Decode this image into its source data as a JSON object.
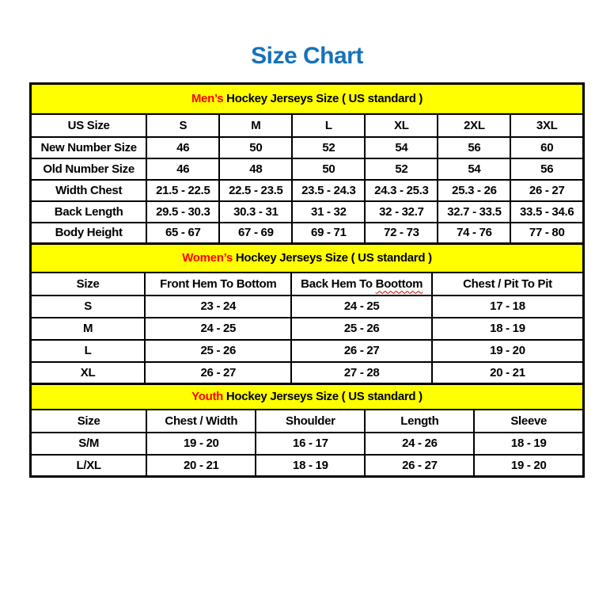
{
  "page": {
    "title": "Size Chart"
  },
  "colors": {
    "title_blue": "#1572BD",
    "band_yellow": "#FFFF00",
    "accent_red": "#FF0000",
    "spellcheck_squiggle_red": "#D40000",
    "border_black": "#000000"
  },
  "sections": [
    {
      "id": "mens",
      "heading_accent": "Men’s",
      "heading_rest": "Hockey Jerseys Size ( US standard )",
      "columns": [
        {
          "text": "US Size"
        },
        {
          "text": "S"
        },
        {
          "text": "M"
        },
        {
          "text": "L"
        },
        {
          "text": "XL"
        },
        {
          "text": "2XL"
        },
        {
          "text": "3XL"
        }
      ],
      "rows": [
        {
          "label": "New Number Size",
          "values": [
            "46",
            "50",
            "52",
            "54",
            "56",
            "60"
          ]
        },
        {
          "label": "Old Number Size",
          "values": [
            "46",
            "48",
            "50",
            "52",
            "54",
            "56"
          ]
        },
        {
          "label": "Width Chest",
          "values": [
            "21.5 - 22.5",
            "22.5 - 23.5",
            "23.5 - 24.3",
            "24.3 - 25.3",
            "25.3 - 26",
            "26 - 27"
          ]
        },
        {
          "label": "Back Length",
          "values": [
            "29.5 - 30.3",
            "30.3 - 31",
            "31 - 32",
            "32 - 32.7",
            "32.7 - 33.5",
            "33.5 - 34.6"
          ]
        },
        {
          "label": "Body Height",
          "values": [
            "65 - 67",
            "67 - 69",
            "69 - 71",
            "72 - 73",
            "74 - 76",
            "77 - 80"
          ]
        }
      ]
    },
    {
      "id": "womens",
      "heading_accent": "Women’s",
      "heading_rest": "Hockey Jerseys Size ( US standard )",
      "columns": [
        {
          "text": "Size"
        },
        {
          "text": "Front Hem To Bottom"
        },
        {
          "text": "Back Hem To Boottom",
          "wavy_word": "Boottom"
        },
        {
          "text": "Chest / Pit To Pit"
        }
      ],
      "rows": [
        {
          "label": "S",
          "values": [
            "23 - 24",
            "24 - 25",
            "17 - 18"
          ]
        },
        {
          "label": "M",
          "values": [
            "24 - 25",
            "25 - 26",
            "18 - 19"
          ]
        },
        {
          "label": "L",
          "values": [
            "25 - 26",
            "26 - 27",
            "19 - 20"
          ]
        },
        {
          "label": "XL",
          "values": [
            "26 - 27",
            "27 - 28",
            "20 - 21"
          ]
        }
      ]
    },
    {
      "id": "youth",
      "heading_accent": "Youth",
      "heading_rest": "Hockey Jerseys Size ( US standard )",
      "columns": [
        {
          "text": "Size"
        },
        {
          "text": "Chest / Width"
        },
        {
          "text": "Shoulder"
        },
        {
          "text": "Length"
        },
        {
          "text": "Sleeve"
        }
      ],
      "rows": [
        {
          "label": "S/M",
          "values": [
            "19 - 20",
            "16 - 17",
            "24 - 26",
            "18 - 19"
          ]
        },
        {
          "label": "L/XL",
          "values": [
            "20 - 21",
            "18 - 19",
            "26 - 27",
            "19 - 20"
          ]
        }
      ]
    }
  ]
}
